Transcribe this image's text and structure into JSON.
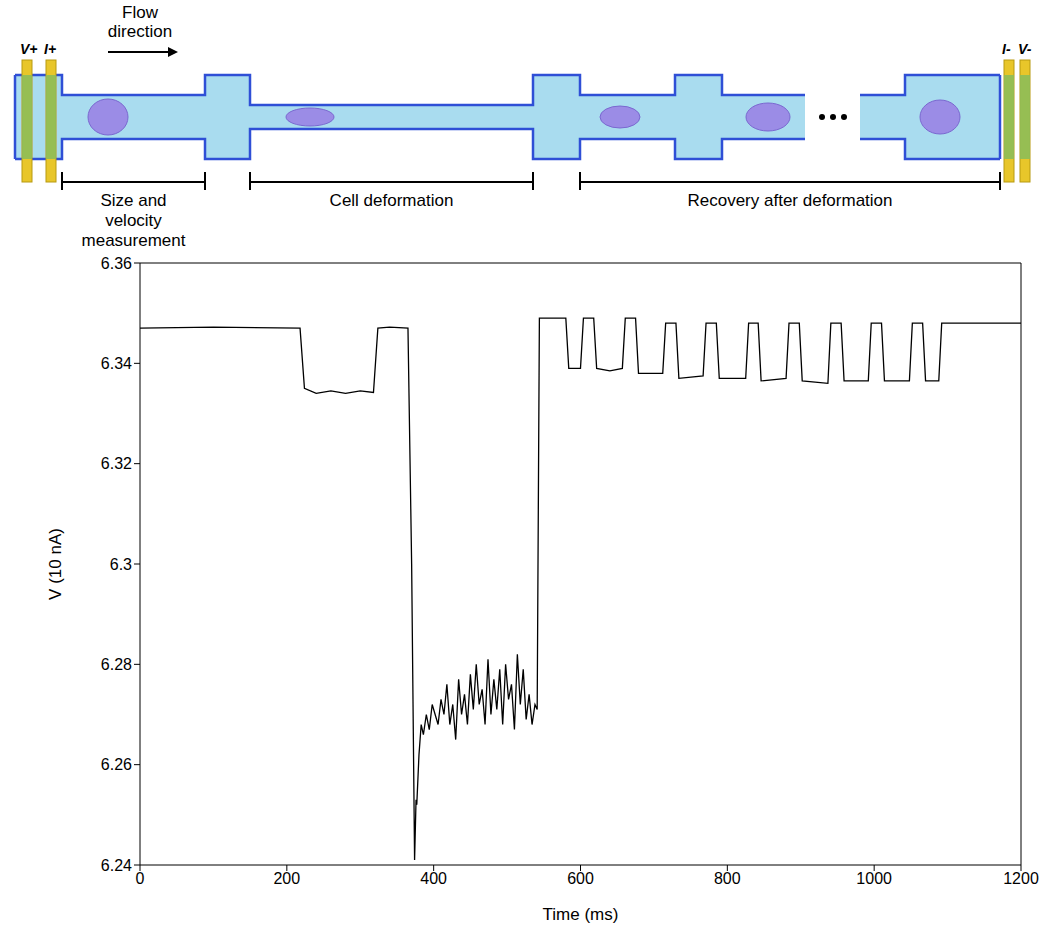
{
  "diagram": {
    "flow_label": "Flow direction",
    "electrodes_left": [
      "V+",
      "I+"
    ],
    "electrodes_right": [
      "I-",
      "V-"
    ],
    "sections": [
      "Size and velocity measurement",
      "Cell deformation",
      "Recovery after deformation"
    ]
  },
  "chart_data": {
    "type": "line",
    "x_label": "Time (ms)",
    "y_label": "V (10 nA)",
    "x": [
      0,
      100,
      218,
      224,
      240,
      260,
      280,
      300,
      318,
      324,
      340,
      365,
      370,
      374,
      376,
      377,
      380,
      383,
      386,
      390,
      394,
      398,
      402,
      406,
      410,
      414,
      418,
      422,
      426,
      430,
      434,
      438,
      442,
      446,
      450,
      454,
      458,
      462,
      466,
      470,
      474,
      478,
      482,
      486,
      490,
      494,
      498,
      502,
      506,
      510,
      514,
      518,
      522,
      526,
      530,
      534,
      538,
      541,
      544,
      580,
      584,
      600,
      604,
      618,
      622,
      640,
      657,
      661,
      675,
      679,
      712,
      716,
      730,
      734,
      767,
      771,
      785,
      789,
      825,
      829,
      842,
      846,
      880,
      884,
      898,
      902,
      937,
      941,
      955,
      959,
      992,
      996,
      1010,
      1014,
      1048,
      1052,
      1066,
      1070,
      1088,
      1092,
      1200
    ],
    "series": [
      {
        "color": "#000000",
        "values": [
          6.347,
          6.3472,
          6.347,
          6.335,
          6.334,
          6.3345,
          6.334,
          6.3345,
          6.3342,
          6.347,
          6.3472,
          6.347,
          6.3,
          6.241,
          6.253,
          6.252,
          6.262,
          6.268,
          6.266,
          6.27,
          6.267,
          6.272,
          6.27,
          6.268,
          6.273,
          6.27,
          6.276,
          6.268,
          6.272,
          6.265,
          6.277,
          6.27,
          6.274,
          6.268,
          6.278,
          6.271,
          6.28,
          6.272,
          6.275,
          6.268,
          6.281,
          6.27,
          6.277,
          6.271,
          6.279,
          6.268,
          6.28,
          6.273,
          6.276,
          6.267,
          6.282,
          6.272,
          6.279,
          6.269,
          6.274,
          6.268,
          6.272,
          6.271,
          6.349,
          6.349,
          6.339,
          6.339,
          6.349,
          6.349,
          6.339,
          6.3385,
          6.339,
          6.349,
          6.349,
          6.338,
          6.338,
          6.348,
          6.348,
          6.337,
          6.3375,
          6.348,
          6.348,
          6.337,
          6.337,
          6.348,
          6.348,
          6.3365,
          6.337,
          6.348,
          6.348,
          6.3365,
          6.336,
          6.348,
          6.348,
          6.3365,
          6.3365,
          6.348,
          6.348,
          6.3365,
          6.3365,
          6.348,
          6.348,
          6.3365,
          6.3365,
          6.348,
          6.348
        ]
      }
    ],
    "xlim": [
      0,
      1200
    ],
    "xticks": [
      0,
      200,
      400,
      600,
      800,
      1000,
      1200
    ],
    "ylim": [
      6.24,
      6.36
    ],
    "yticks": [
      6.24,
      6.26,
      6.28,
      6.3,
      6.32,
      6.34,
      6.36
    ],
    "grid": false
  }
}
